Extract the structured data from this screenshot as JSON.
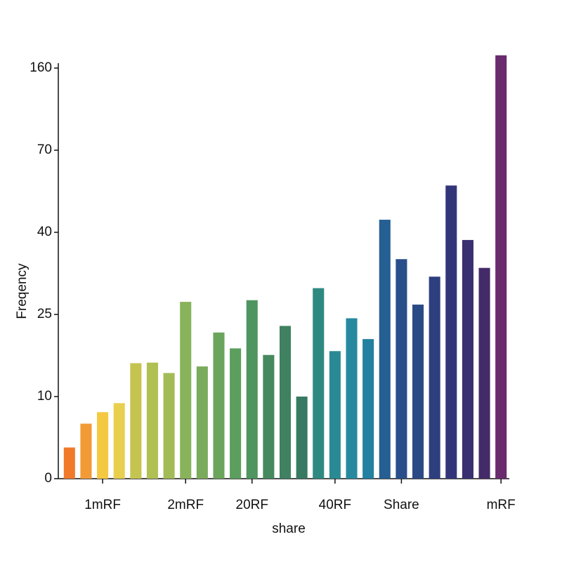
{
  "chart_data": {
    "type": "bar",
    "x_label": "share",
    "y_label": "Freqency",
    "categories": [
      null,
      null,
      "1mRF",
      null,
      null,
      null,
      null,
      "2mRF",
      null,
      null,
      null,
      "20RF",
      null,
      null,
      null,
      null,
      "40RF",
      null,
      null,
      null,
      "Share",
      null,
      null,
      null,
      null,
      null,
      "mRF"
    ],
    "values": [
      3.8,
      6.7,
      8.1,
      9.2,
      16.1,
      16.2,
      14.3,
      27.3,
      15.5,
      21.7,
      18.8,
      27.6,
      17.6,
      22.9,
      10,
      29.8,
      18.3,
      24.3,
      20.5,
      44.6,
      35.1,
      26.8,
      31.9,
      57.1,
      38.6,
      33.5,
      174
    ],
    "colors": [
      "#f07a2a",
      "#f29a35",
      "#f5c842",
      "#e9cf4e",
      "#c5c450",
      "#b0c052",
      "#a3bb56",
      "#88b35a",
      "#7aab5c",
      "#6ba55c",
      "#5c9e5d",
      "#4e955f",
      "#46895f",
      "#3f8160",
      "#377a61",
      "#2e8a80",
      "#2a8a94",
      "#27899f",
      "#2380a0",
      "#255f93",
      "#284f8a",
      "#2b4a85",
      "#2e3f7e",
      "#323679",
      "#3a2f70",
      "#432a68",
      "#6a2a6e"
    ],
    "ylim": [
      0,
      180
    ],
    "yticks": [
      0,
      10,
      25,
      40,
      70,
      160
    ]
  }
}
